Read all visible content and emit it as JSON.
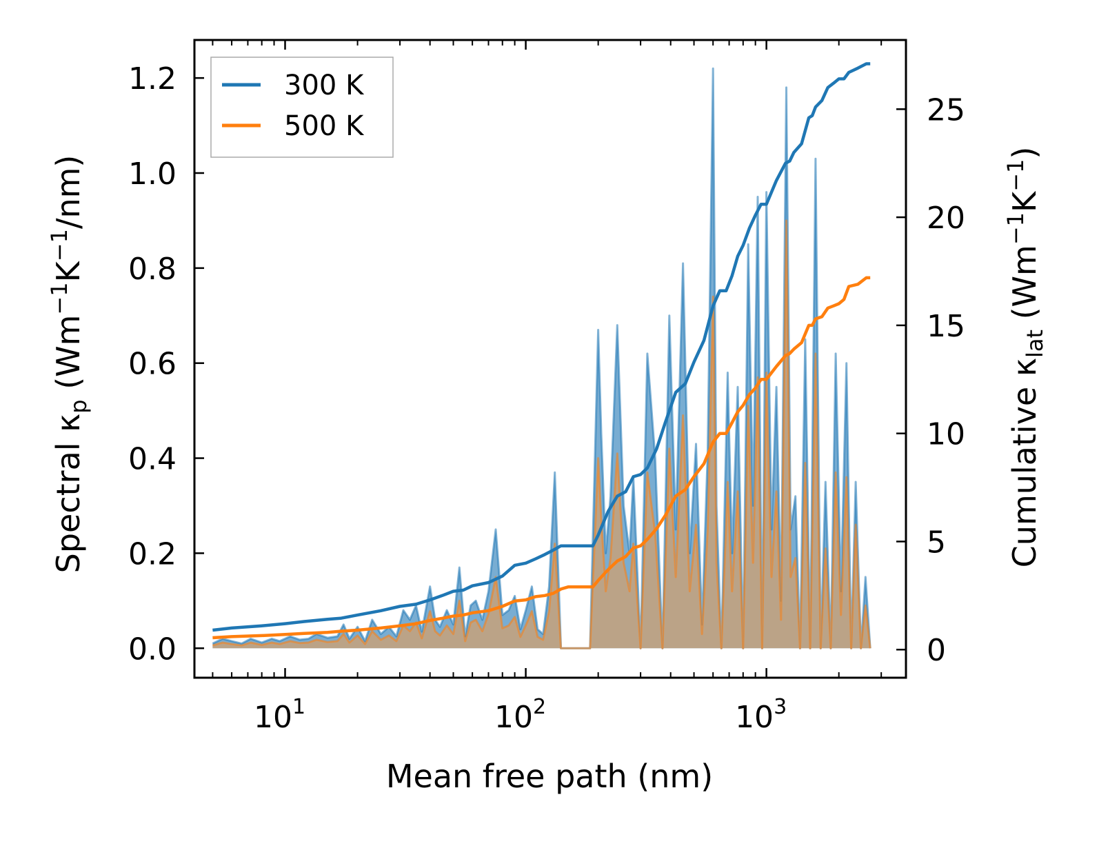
{
  "chart_data": {
    "type": "line",
    "title": "",
    "xlabel": "Mean free path (nm)",
    "ylabel_left": {
      "base": "Spectral κ",
      "sub": "p",
      "unit_open": " (Wm",
      "sup1": "−1",
      "unit_mid": "K",
      "sup2": "−1",
      "unit_close": "/nm)"
    },
    "ylabel_right": {
      "base": "Cumulative κ",
      "sub": "lat",
      "unit_open": " (Wm",
      "sup1": "−1",
      "unit_mid": "K",
      "sup2": "−1",
      "unit_close": ")"
    },
    "x_scale": "log",
    "xlim": [
      4.2,
      3800
    ],
    "ylim_left": [
      -0.062,
      1.28
    ],
    "ylim_right": [
      -1.3,
      28.2
    ],
    "x_ticks": [
      {
        "value": 10,
        "base": "10",
        "exp": "1"
      },
      {
        "value": 100,
        "base": "10",
        "exp": "2"
      },
      {
        "value": 1000,
        "base": "10",
        "exp": "3"
      }
    ],
    "y_ticks_left": [
      "0.0",
      "0.2",
      "0.4",
      "0.6",
      "0.8",
      "1.0",
      "1.2"
    ],
    "y_ticks_right": [
      "0",
      "5",
      "10",
      "15",
      "20",
      "25"
    ],
    "legend": {
      "location": "upper left",
      "entries": [
        {
          "label": "300 K",
          "color": "#1f77b4"
        },
        {
          "label": "500 K",
          "color": "#ff7f0e"
        }
      ]
    },
    "series": [
      {
        "name": "300 K spectral",
        "axis": "left",
        "style": "filled",
        "color": "#1f77b4",
        "x": [
          5,
          5.5,
          6,
          6.6,
          7.2,
          8,
          8.8,
          9.5,
          10.5,
          11.5,
          12.5,
          13.5,
          15,
          16.5,
          17.5,
          18.5,
          20,
          21.5,
          23,
          25,
          27,
          29,
          31,
          33,
          35,
          37,
          40,
          42,
          44,
          47,
          50,
          53,
          56,
          59,
          62,
          66,
          70,
          75,
          80,
          85,
          90,
          95,
          100,
          106,
          112,
          118,
          125,
          132,
          140,
          148,
          150,
          165,
          185,
          200,
          206,
          215,
          225,
          240,
          255,
          270,
          280,
          300,
          320,
          345,
          370,
          395,
          420,
          450,
          480,
          510,
          540,
          570,
          600,
          620,
          650,
          690,
          720,
          760,
          800,
          840,
          880,
          920,
          960,
          1000,
          1050,
          1100,
          1150,
          1210,
          1260,
          1320,
          1380,
          1450,
          1520,
          1600,
          1680,
          1760,
          1850,
          1940,
          2040,
          2150,
          2250,
          2350,
          2470,
          2580,
          2700
        ],
        "values": [
          0.01,
          0.02,
          0.015,
          0.01,
          0.02,
          0.012,
          0.02,
          0.015,
          0.025,
          0.018,
          0.02,
          0.03,
          0.022,
          0.025,
          0.05,
          0.02,
          0.045,
          0.015,
          0.06,
          0.03,
          0.045,
          0.025,
          0.08,
          0.06,
          0.09,
          0.035,
          0.13,
          0.06,
          0.045,
          0.08,
          0.05,
          0.17,
          0.025,
          0.09,
          0.1,
          0.06,
          0.12,
          0.25,
          0.07,
          0.08,
          0.11,
          0.04,
          0.08,
          0.13,
          0.04,
          0.03,
          0.13,
          0.37,
          0.0,
          0.0,
          0.0,
          0.0,
          0.0,
          0.67,
          0.45,
          0.2,
          0.32,
          0.68,
          0.3,
          0.2,
          0.36,
          0.0,
          0.62,
          0.4,
          0.0,
          0.7,
          0.25,
          0.81,
          0.2,
          0.43,
          0.05,
          0.41,
          1.22,
          0.3,
          0.0,
          0.58,
          0.2,
          0.55,
          0.0,
          0.85,
          0.3,
          0.95,
          0.0,
          0.96,
          0.25,
          0.55,
          0.1,
          1.18,
          0.25,
          0.32,
          0.0,
          0.65,
          0.0,
          1.03,
          0.0,
          0.35,
          0.0,
          0.62,
          0.12,
          0.6,
          0.0,
          0.35,
          0.0,
          0.15,
          0.0
        ],
        "fill": "#1f77b4"
      },
      {
        "name": "500 K spectral",
        "axis": "left",
        "style": "filled",
        "color": "#ff7f0e",
        "x": [
          5,
          5.5,
          6,
          6.6,
          7.2,
          8,
          8.8,
          9.5,
          10.5,
          11.5,
          12.5,
          13.5,
          15,
          16.5,
          17.5,
          18.5,
          20,
          21.5,
          23,
          25,
          27,
          29,
          31,
          33,
          35,
          37,
          40,
          42,
          44,
          47,
          50,
          53,
          56,
          59,
          62,
          66,
          70,
          75,
          80,
          85,
          90,
          95,
          100,
          106,
          112,
          118,
          125,
          132,
          140,
          148,
          150,
          165,
          185,
          200,
          206,
          215,
          225,
          240,
          255,
          270,
          280,
          300,
          320,
          345,
          370,
          395,
          420,
          450,
          480,
          510,
          540,
          570,
          600,
          620,
          650,
          690,
          720,
          760,
          800,
          840,
          880,
          920,
          960,
          1000,
          1050,
          1100,
          1150,
          1210,
          1260,
          1320,
          1380,
          1450,
          1520,
          1600,
          1680,
          1760,
          1850,
          1940,
          2040,
          2150,
          2250,
          2350,
          2470,
          2580,
          2700
        ],
        "values": [
          0.006,
          0.012,
          0.009,
          0.006,
          0.012,
          0.007,
          0.012,
          0.009,
          0.015,
          0.011,
          0.012,
          0.018,
          0.013,
          0.015,
          0.03,
          0.012,
          0.027,
          0.009,
          0.036,
          0.018,
          0.027,
          0.015,
          0.048,
          0.036,
          0.054,
          0.021,
          0.078,
          0.036,
          0.027,
          0.048,
          0.03,
          0.1,
          0.015,
          0.054,
          0.06,
          0.036,
          0.072,
          0.15,
          0.042,
          0.048,
          0.066,
          0.024,
          0.048,
          0.078,
          0.024,
          0.018,
          0.078,
          0.22,
          0.0,
          0.0,
          0.0,
          0.0,
          0.0,
          0.4,
          0.27,
          0.12,
          0.19,
          0.41,
          0.18,
          0.12,
          0.22,
          0.0,
          0.37,
          0.24,
          0.0,
          0.42,
          0.15,
          0.49,
          0.12,
          0.26,
          0.03,
          0.25,
          0.74,
          0.18,
          0.0,
          0.35,
          0.12,
          0.33,
          0.0,
          0.51,
          0.18,
          0.57,
          0.0,
          0.58,
          0.15,
          0.33,
          0.06,
          0.9,
          0.15,
          0.19,
          0.0,
          0.39,
          0.0,
          0.62,
          0.0,
          0.21,
          0.0,
          0.37,
          0.07,
          0.36,
          0.0,
          0.26,
          0.0,
          0.09,
          0.0
        ],
        "fill": "#d2a06e"
      },
      {
        "name": "300 K",
        "axis": "right",
        "style": "line",
        "color": "#1f77b4",
        "x": [
          5,
          6,
          8,
          10,
          12,
          15,
          17,
          20,
          25,
          30,
          35,
          40,
          45,
          50,
          55,
          60,
          70,
          80,
          90,
          100,
          110,
          120,
          130,
          140,
          150,
          160,
          175,
          190,
          200,
          220,
          240,
          260,
          280,
          300,
          320,
          350,
          380,
          420,
          460,
          500,
          550,
          600,
          640,
          680,
          720,
          760,
          800,
          850,
          900,
          950,
          1000,
          1100,
          1200,
          1250,
          1300,
          1400,
          1500,
          1550,
          1600,
          1700,
          1800,
          1900,
          2000,
          2100,
          2200,
          2400,
          2600,
          2700
        ],
        "values": [
          0.9,
          1.0,
          1.1,
          1.2,
          1.3,
          1.4,
          1.45,
          1.6,
          1.8,
          2.0,
          2.1,
          2.3,
          2.5,
          2.7,
          2.75,
          2.95,
          3.1,
          3.4,
          3.9,
          4.0,
          4.2,
          4.4,
          4.6,
          4.8,
          4.8,
          4.8,
          4.8,
          4.8,
          5.3,
          6.4,
          7.1,
          7.3,
          8.0,
          8.1,
          8.4,
          9.3,
          10.5,
          11.9,
          12.3,
          13.3,
          14.3,
          15.9,
          16.6,
          16.6,
          17.3,
          18.2,
          18.7,
          19.5,
          20.1,
          20.6,
          20.6,
          21.7,
          22.5,
          22.6,
          23.0,
          23.4,
          24.6,
          24.7,
          25.1,
          25.4,
          26.0,
          26.2,
          26.4,
          26.4,
          26.7,
          26.9,
          27.1,
          27.1
        ],
        "fill": "none"
      },
      {
        "name": "500 K",
        "axis": "right",
        "style": "line",
        "color": "#ff7f0e",
        "x": [
          5,
          6,
          8,
          10,
          12,
          15,
          17,
          20,
          25,
          30,
          35,
          40,
          45,
          50,
          55,
          60,
          70,
          80,
          90,
          100,
          110,
          120,
          130,
          140,
          150,
          160,
          175,
          190,
          200,
          220,
          240,
          260,
          280,
          300,
          320,
          350,
          380,
          420,
          460,
          500,
          550,
          600,
          640,
          680,
          720,
          760,
          800,
          850,
          900,
          950,
          1000,
          1100,
          1200,
          1250,
          1300,
          1400,
          1500,
          1550,
          1600,
          1700,
          1800,
          1900,
          2000,
          2100,
          2200,
          2400,
          2600,
          2700
        ],
        "values": [
          0.55,
          0.6,
          0.65,
          0.7,
          0.75,
          0.8,
          0.85,
          0.9,
          1.0,
          1.1,
          1.2,
          1.35,
          1.45,
          1.55,
          1.6,
          1.7,
          1.8,
          2.0,
          2.25,
          2.3,
          2.45,
          2.5,
          2.6,
          2.8,
          2.9,
          2.9,
          2.9,
          2.9,
          3.2,
          3.7,
          4.1,
          4.3,
          4.7,
          4.8,
          5.1,
          5.6,
          6.2,
          7.1,
          7.4,
          8.0,
          8.6,
          9.6,
          10.0,
          10.0,
          10.5,
          11.0,
          11.3,
          11.8,
          12.1,
          12.5,
          12.5,
          13.1,
          13.6,
          13.7,
          13.9,
          14.2,
          15.0,
          15.0,
          15.3,
          15.4,
          15.8,
          15.9,
          16.0,
          16.2,
          16.8,
          16.9,
          17.2,
          17.2
        ],
        "fill": "none"
      }
    ]
  }
}
